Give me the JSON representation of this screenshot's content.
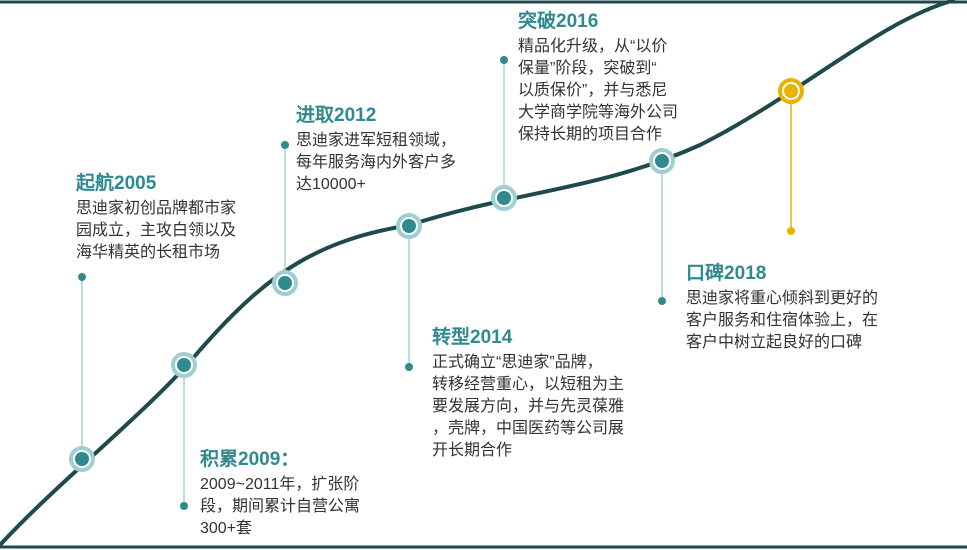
{
  "colors": {
    "curve": "#1f4a4c",
    "node": "#2f8a8f",
    "node_ring": "#9fcfd1",
    "connector": "#a6d3d5",
    "highlight": "#e8b400",
    "title_text": "#2f8a8f",
    "body_text": "#333333"
  },
  "milestones": [
    {
      "id": "2005",
      "title": "起航2005",
      "lines": [
        "思迪家初创品牌都市家",
        "园成立，主攻白领以及",
        "海华精英的长租市场"
      ]
    },
    {
      "id": "2009",
      "title": "积累2009：",
      "lines": [
        "2009~2011年，扩张阶",
        "段，期间累计自营公寓",
        "300+套"
      ]
    },
    {
      "id": "2012",
      "title": "进取2012",
      "lines": [
        "思迪家进军短租领域，",
        "每年服务海内外客户多",
        "达10000+"
      ]
    },
    {
      "id": "2014",
      "title": "转型2014",
      "lines": [
        "正式确立“思迪家”品牌，",
        "转移经营重心，以短租为主",
        "要发展方向，并与先灵葆雅",
        "，壳牌，中国医药等公司展",
        "开长期合作"
      ]
    },
    {
      "id": "2016",
      "title": "突破2016",
      "lines": [
        "精品化升级，从“以价",
        "保量”阶段，突破到“",
        "以质保价”，并与悉尼",
        "大学商学院等海外公司",
        "保持长期的项目合作"
      ]
    },
    {
      "id": "2018",
      "title": "口碑2018",
      "lines": [
        "思迪家将重心倾斜到更好的",
        "客户服务和住宿体验上，在",
        "客户中树立起良好的口碑"
      ]
    }
  ]
}
